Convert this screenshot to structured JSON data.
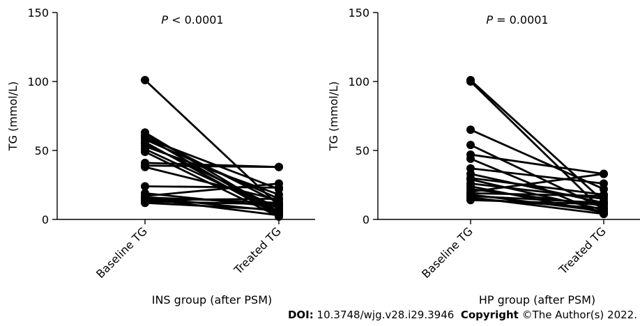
{
  "chart_data": [
    {
      "type": "line",
      "annotation": {
        "italic": "P",
        "rest": " < 0.0001"
      },
      "xlabel": "INS group (after PSM)",
      "ylabel": "TG (mmol/L)",
      "categories": [
        "Baseline TG",
        "Treated TG"
      ],
      "ylim": [
        0,
        150
      ],
      "yticks": [
        0,
        50,
        100,
        150
      ],
      "grid": false,
      "pairs": [
        [
          101,
          10
        ],
        [
          63,
          5
        ],
        [
          61,
          12
        ],
        [
          60,
          4
        ],
        [
          59,
          22
        ],
        [
          58,
          15
        ],
        [
          56,
          3
        ],
        [
          55,
          8
        ],
        [
          53,
          18
        ],
        [
          51,
          6
        ],
        [
          49,
          2
        ],
        [
          41,
          38
        ],
        [
          39,
          38
        ],
        [
          38,
          14
        ],
        [
          24,
          23
        ],
        [
          19,
          9
        ],
        [
          17,
          26
        ],
        [
          16,
          12
        ],
        [
          16,
          6
        ],
        [
          15,
          3
        ],
        [
          14,
          15
        ],
        [
          13,
          11
        ],
        [
          12,
          7
        ]
      ]
    },
    {
      "type": "line",
      "annotation": {
        "italic": "P",
        "rest": " = 0.0001"
      },
      "xlabel": "HP group (after PSM)",
      "ylabel": "TG (mmol/L)",
      "categories": [
        "Baseline TG",
        "Treated TG"
      ],
      "ylim": [
        0,
        150
      ],
      "yticks": [
        0,
        50,
        100,
        150
      ],
      "grid": false,
      "pairs": [
        [
          101,
          13
        ],
        [
          100,
          6
        ],
        [
          65,
          22
        ],
        [
          54,
          8
        ],
        [
          47,
          33
        ],
        [
          44,
          4
        ],
        [
          37,
          26
        ],
        [
          33,
          12
        ],
        [
          30,
          18
        ],
        [
          29,
          7
        ],
        [
          26,
          15
        ],
        [
          24,
          5
        ],
        [
          22,
          10
        ],
        [
          20,
          33
        ],
        [
          19,
          17
        ],
        [
          18,
          6
        ],
        [
          17,
          12
        ],
        [
          16,
          4
        ],
        [
          15,
          8
        ],
        [
          14,
          11
        ]
      ]
    }
  ],
  "footer": {
    "doi_label": "DOI:",
    "doi_value": "10.3748/wjg.v28.i29.3946",
    "copyright_label": "Copyright",
    "copyright_value": "©The Author(s) 2022."
  }
}
